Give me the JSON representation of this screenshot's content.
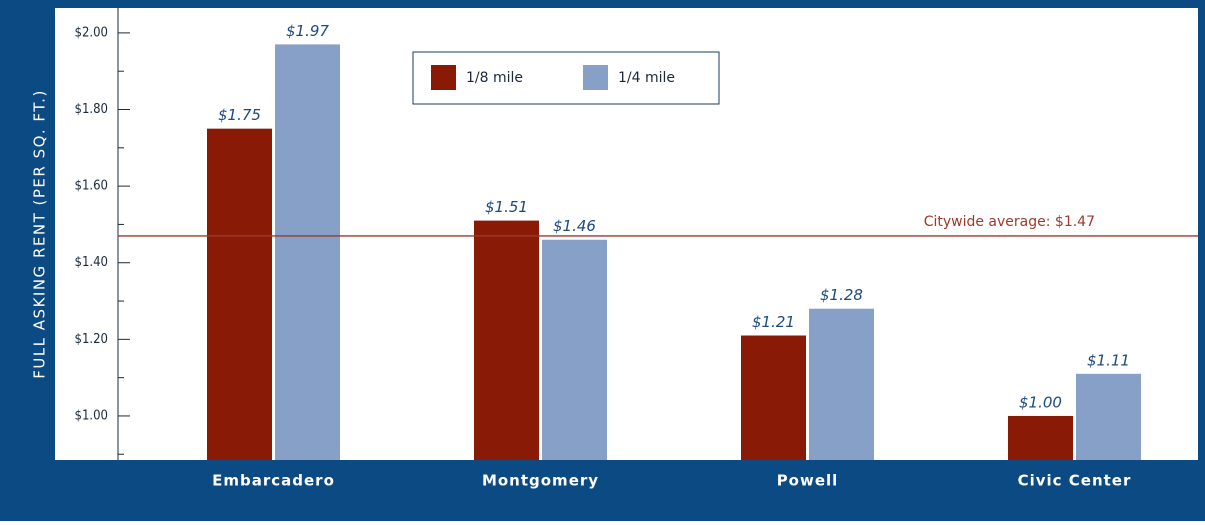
{
  "chart_data": {
    "type": "bar",
    "ylabel": "FULL ASKING RENT (PER SQ. FT.)",
    "categories": [
      "Embarcadero",
      "Montgomery",
      "Powell",
      "Civic Center"
    ],
    "series": [
      {
        "name": "1/8 mile",
        "color": "#891b06",
        "values": [
          1.75,
          1.51,
          1.21,
          1.0
        ],
        "value_labels": [
          "$1.75",
          "$1.51",
          "$1.21",
          "$1.00"
        ]
      },
      {
        "name": "1/4 mile",
        "color": "#86a0c8",
        "values": [
          1.97,
          1.46,
          1.28,
          1.11
        ],
        "value_labels": [
          "$1.97",
          "$1.46",
          "$1.28",
          "$1.11"
        ]
      }
    ],
    "ylim": [
      0.885,
      2.065
    ],
    "yticks": [
      {
        "value": 1.0,
        "label": "$1.00"
      },
      {
        "value": 1.2,
        "label": "$1.20"
      },
      {
        "value": 1.4,
        "label": "$1.40"
      },
      {
        "value": 1.6,
        "label": "$1.60"
      },
      {
        "value": 1.8,
        "label": "$1.80"
      },
      {
        "value": 2.0,
        "label": "$2.00"
      }
    ],
    "yminor_ticks": [
      0.9,
      1.1,
      1.3,
      1.5,
      1.7,
      1.9
    ],
    "reference_line": {
      "value": 1.47,
      "label": "Citywide average: $1.47",
      "color": "#9b3a2a"
    },
    "legend": "top"
  }
}
